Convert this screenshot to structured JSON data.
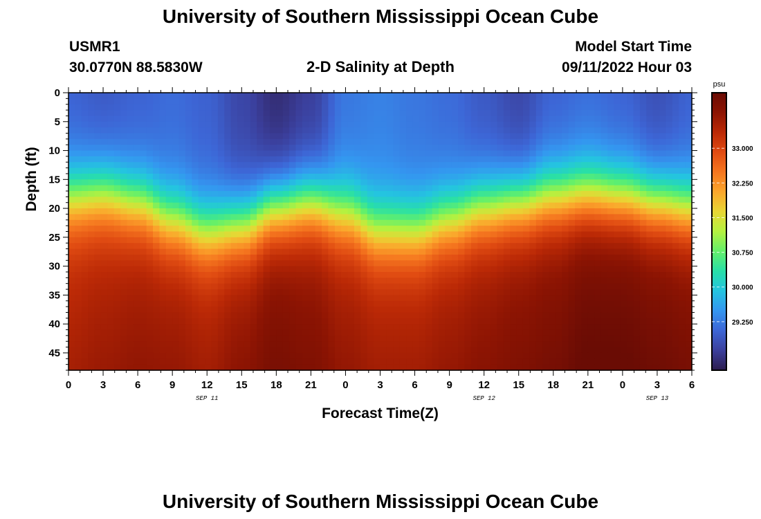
{
  "page": {
    "title": "University of Southern Mississippi Ocean Cube",
    "bottom_title": "University of Southern Mississippi Ocean Cube",
    "station": "USMR1",
    "coords": "30.0770N  88.5830W",
    "plot_title": "2-D Salinity at Depth",
    "model_start_label": "Model Start Time",
    "model_start_value": "09/11/2022 Hour 03"
  },
  "chart_data": {
    "type": "heatmap",
    "title": "2-D Salinity at Depth",
    "xlabel": "Forecast Time(Z)",
    "ylabel": "Depth (ft)",
    "x_ticks": [
      "0",
      "3",
      "6",
      "9",
      "12",
      "15",
      "18",
      "21",
      "0",
      "3",
      "6",
      "9",
      "12",
      "15",
      "18",
      "21",
      "0",
      "3",
      "6"
    ],
    "x_range_hours": [
      0,
      54
    ],
    "date_labels": [
      {
        "text": "SEP 11",
        "hour": 12
      },
      {
        "text": "SEP 12",
        "hour": 36
      },
      {
        "text": "SEP 13",
        "hour": 51
      }
    ],
    "y_ticks": [
      "0",
      "5",
      "10",
      "15",
      "20",
      "25",
      "30",
      "35",
      "40",
      "45"
    ],
    "y_range": [
      0,
      48
    ],
    "colorbar": {
      "unit": "psu",
      "range": [
        28.2,
        34.2
      ],
      "ticks": [
        "33.000",
        "32.250",
        "31.500",
        "30.750",
        "30.000",
        "29.250"
      ],
      "tick_values": [
        33.0,
        32.25,
        31.5,
        30.75,
        30.0,
        29.25
      ],
      "colormap": [
        "#2c1c4e",
        "#3b3f9c",
        "#3d66d6",
        "#3496f0",
        "#24c4e0",
        "#28dfa8",
        "#64f06a",
        "#b4f140",
        "#e8d634",
        "#fba62c",
        "#f5761f",
        "#e04b12",
        "#bb2906",
        "#8c1403",
        "#6a0c04"
      ]
    },
    "time_hours": [
      0,
      3,
      6,
      9,
      12,
      15,
      18,
      21,
      24,
      27,
      30,
      33,
      36,
      39,
      42,
      45,
      48,
      51,
      54
    ],
    "halocline_depth_ft": [
      18,
      17.5,
      19,
      22,
      24,
      23,
      20,
      19,
      21,
      24,
      24,
      22,
      20,
      19,
      18,
      17.5,
      18,
      19,
      20
    ],
    "surface_salinity_psu": [
      29.0,
      28.9,
      29.0,
      29.1,
      29.0,
      28.7,
      28.4,
      28.6,
      29.2,
      29.3,
      29.2,
      29.1,
      28.9,
      28.7,
      29.0,
      29.1,
      29.0,
      28.8,
      29.0
    ],
    "bottom_salinity_psu": [
      33.3,
      33.4,
      33.5,
      33.5,
      33.4,
      33.6,
      33.8,
      33.7,
      33.5,
      33.4,
      33.4,
      33.5,
      33.6,
      33.7,
      33.8,
      34.0,
      34.0,
      33.9,
      33.8
    ]
  }
}
